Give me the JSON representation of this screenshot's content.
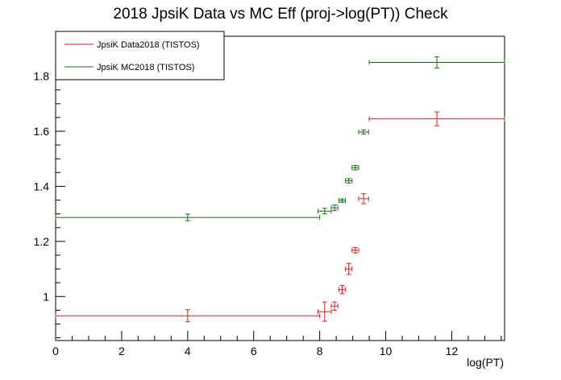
{
  "chart_data": {
    "type": "scatter",
    "title": "2018 JpsiK Data vs MC Eff (proj->log(PT)) Check",
    "xlabel": "log(PT)",
    "ylabel": "",
    "xlim": [
      0,
      13.6
    ],
    "ylim": [
      0.84,
      1.945
    ],
    "x_ticks": [
      "0",
      "2",
      "4",
      "6",
      "8",
      "10",
      "12"
    ],
    "y_ticks": [
      "1",
      "1.2",
      "1.4",
      "1.6",
      "1.8"
    ],
    "legend_position": "top-left",
    "series": [
      {
        "name": "JpsiK Data2018 (TISTOS)",
        "color": "#cc2222",
        "points": [
          {
            "x": 4.0,
            "xlo": 0.0,
            "xhi": 8.0,
            "y": 0.93,
            "yerr": 0.022
          },
          {
            "x": 8.15,
            "xlo": 7.95,
            "xhi": 8.35,
            "y": 0.945,
            "yerr": 0.035
          },
          {
            "x": 8.45,
            "xlo": 8.35,
            "xhi": 8.55,
            "y": 0.965,
            "yerr": 0.015
          },
          {
            "x": 8.68,
            "xlo": 8.58,
            "xhi": 8.78,
            "y": 1.025,
            "yerr": 0.015
          },
          {
            "x": 8.88,
            "xlo": 8.78,
            "xhi": 8.98,
            "y": 1.1,
            "yerr": 0.02
          },
          {
            "x": 9.08,
            "xlo": 8.98,
            "xhi": 9.18,
            "y": 1.168,
            "yerr": 0.01
          },
          {
            "x": 9.33,
            "xlo": 9.18,
            "xhi": 9.48,
            "y": 1.355,
            "yerr": 0.018
          },
          {
            "x": 11.55,
            "xlo": 9.5,
            "xhi": 13.6,
            "y": 1.645,
            "yerr": 0.025
          }
        ]
      },
      {
        "name": "JpsiK MC2018 (TISTOS)",
        "color": "#226622",
        "points": [
          {
            "x": 4.0,
            "xlo": 0.0,
            "xhi": 8.0,
            "y": 1.287,
            "yerr": 0.012
          },
          {
            "x": 8.15,
            "xlo": 7.95,
            "xhi": 8.35,
            "y": 1.31,
            "yerr": 0.01
          },
          {
            "x": 8.45,
            "xlo": 8.35,
            "xhi": 8.55,
            "y": 1.322,
            "yerr": 0.01
          },
          {
            "x": 8.68,
            "xlo": 8.58,
            "xhi": 8.78,
            "y": 1.348,
            "yerr": 0.006
          },
          {
            "x": 8.88,
            "xlo": 8.78,
            "xhi": 8.98,
            "y": 1.42,
            "yerr": 0.008
          },
          {
            "x": 9.08,
            "xlo": 8.98,
            "xhi": 9.18,
            "y": 1.468,
            "yerr": 0.008
          },
          {
            "x": 9.33,
            "xlo": 9.18,
            "xhi": 9.48,
            "y": 1.597,
            "yerr": 0.008
          },
          {
            "x": 11.55,
            "xlo": 9.5,
            "xhi": 13.6,
            "y": 1.85,
            "yerr": 0.02
          }
        ]
      }
    ]
  }
}
